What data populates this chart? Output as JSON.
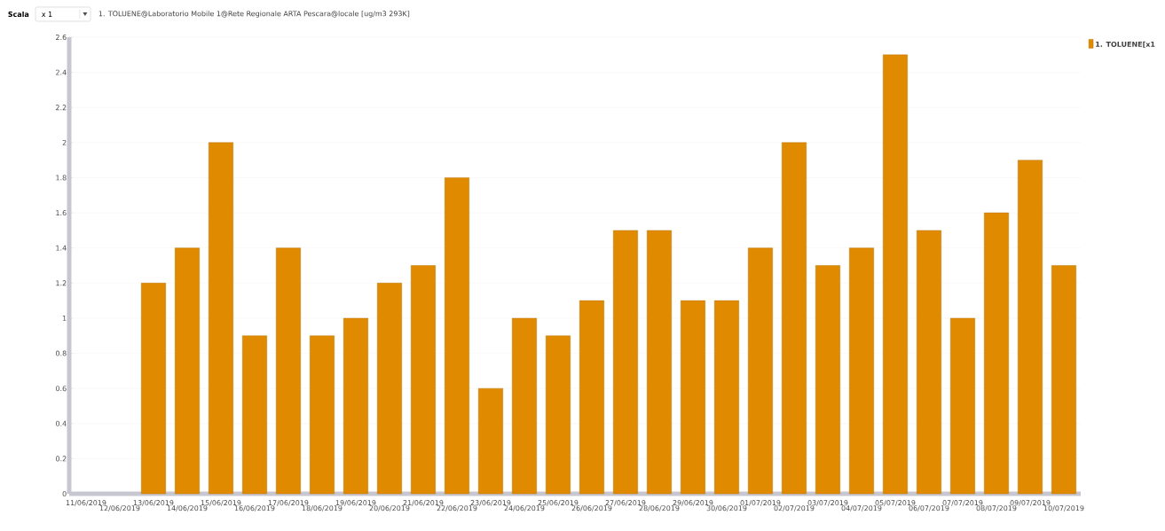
{
  "chart_data": {
    "type": "bar",
    "title": "1. TOLUENE@Laboratorio Mobile 1@Rete Regionale ARTA Pescara@locale [ug/m3 293K]",
    "annotations": [
      "Scala",
      "x 1"
    ],
    "categories": [
      "11/06/2019",
      "12/06/2019",
      "13/06/2019",
      "14/06/2019",
      "15/06/2019",
      "16/06/2019",
      "17/06/2019",
      "18/06/2019",
      "19/06/2019",
      "20/06/2019",
      "21/06/2019",
      "22/06/2019",
      "23/06/2019",
      "24/06/2019",
      "25/06/2019",
      "26/06/2019",
      "27/06/2019",
      "28/06/2019",
      "29/06/2019",
      "30/06/2019",
      "01/07/2019",
      "02/07/2019",
      "03/07/2019",
      "04/07/2019",
      "05/07/2019",
      "06/07/2019",
      "07/07/2019",
      "08/07/2019",
      "09/07/2019",
      "10/07/2019"
    ],
    "series": [
      {
        "name": "1. TOLUENE[x1",
        "color": "#e08a00",
        "values": [
          null,
          null,
          1.2,
          1.4,
          2.0,
          0.9,
          1.4,
          0.9,
          1.0,
          1.2,
          1.3,
          1.8,
          0.6,
          1.0,
          0.9,
          1.1,
          1.5,
          1.5,
          1.1,
          1.1,
          1.4,
          2.0,
          1.3,
          1.4,
          2.5,
          1.5,
          1.0,
          1.6,
          1.9,
          1.3
        ]
      }
    ],
    "ylim": [
      0,
      2.6
    ],
    "yticks": [
      0,
      0.2,
      0.4,
      0.6,
      0.8,
      1,
      1.2,
      1.4,
      1.6,
      1.8,
      2,
      2.2,
      2.4,
      2.6
    ],
    "grid": "y",
    "legend": "top right"
  }
}
